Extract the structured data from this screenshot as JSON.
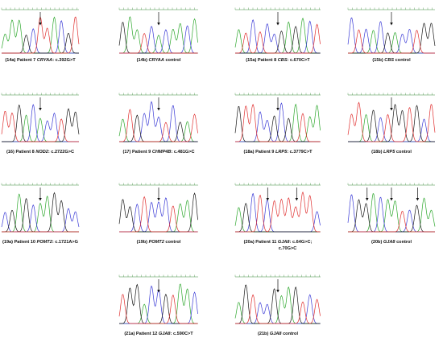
{
  "figure": {
    "panels": [
      {
        "id": "14a",
        "caption": [
          {
            "t": "(14a) Patient 7 "
          },
          {
            "t": "CRYAA",
            "i": true
          },
          {
            "t": ": c.392G>T"
          }
        ],
        "arrows": 1,
        "mutant": true
      },
      {
        "id": "14b",
        "caption": [
          {
            "t": "(14b) "
          },
          {
            "t": "CRYAA",
            "i": true
          },
          {
            "t": " control"
          }
        ],
        "arrows": 1,
        "mutant": false
      },
      {
        "id": "15a",
        "caption": [
          {
            "t": "(15a) Patient 8 "
          },
          {
            "t": "CBS",
            "i": true
          },
          {
            "t": ": c.670C>T"
          }
        ],
        "arrows": 1,
        "mutant": true
      },
      {
        "id": "15b",
        "caption": [
          {
            "t": "(15b) "
          },
          {
            "t": "CBS",
            "i": true
          },
          {
            "t": " control"
          }
        ],
        "arrows": 1,
        "mutant": false
      },
      {
        "id": "16",
        "caption": [
          {
            "t": "(16) Patient 8 "
          },
          {
            "t": "NOD2",
            "i": true
          },
          {
            "t": ": c.2722G>C"
          }
        ],
        "arrows": 1,
        "mutant": true
      },
      {
        "id": "17",
        "caption": [
          {
            "t": "(17) Patient 9 "
          },
          {
            "t": "CHMP4B",
            "i": true
          },
          {
            "t": ": c.481G>C"
          }
        ],
        "arrows": 1,
        "mutant": true
      },
      {
        "id": "18a",
        "caption": [
          {
            "t": "(18a) Patient 9 "
          },
          {
            "t": "LRP5",
            "i": true
          },
          {
            "t": ": c.3779C>T"
          }
        ],
        "arrows": 1,
        "mutant": true
      },
      {
        "id": "18b",
        "caption": [
          {
            "t": "(18b) "
          },
          {
            "t": "LRP5",
            "i": true
          },
          {
            "t": " control"
          }
        ],
        "arrows": 1,
        "mutant": false
      },
      {
        "id": "19a",
        "caption": [
          {
            "t": "(19a) Patient 10 "
          },
          {
            "t": "POMT2",
            "i": true
          },
          {
            "t": ": c.1721A>G"
          }
        ],
        "arrows": 1,
        "mutant": true
      },
      {
        "id": "19b",
        "caption": [
          {
            "t": "(19b) "
          },
          {
            "t": "POMT2",
            "i": true
          },
          {
            "t": " control"
          }
        ],
        "arrows": 1,
        "mutant": false
      },
      {
        "id": "20a",
        "caption": [
          {
            "t": "(20a) Patient 11 "
          },
          {
            "t": "GJA8",
            "i": true
          },
          {
            "t": ": c.64G>C;"
          }
        ],
        "caption2": "c.70G>C",
        "arrows": 2,
        "mutant": true
      },
      {
        "id": "20b",
        "caption": [
          {
            "t": "(20b) "
          },
          {
            "t": "GJA8",
            "i": true
          },
          {
            "t": " control"
          }
        ],
        "arrows": 3,
        "mutant": false
      },
      {
        "id": "21a",
        "caption": [
          {
            "t": "(21a) Patient 12 "
          },
          {
            "t": "GJA8",
            "i": true
          },
          {
            "t": ": c.590C>T"
          }
        ],
        "arrows": 1,
        "mutant": true
      },
      {
        "id": "21b",
        "caption": [
          {
            "t": "(21b) "
          },
          {
            "t": "GJA8",
            "i": true
          },
          {
            "t": " control"
          }
        ],
        "arrows": 1,
        "mutant": false
      }
    ]
  },
  "colors": {
    "A": "#2ea82e",
    "C": "#3b3bd6",
    "G": "#1a1a1a",
    "T": "#e03030",
    "ruler": "#3a8a3a",
    "arrow": "#111111"
  }
}
